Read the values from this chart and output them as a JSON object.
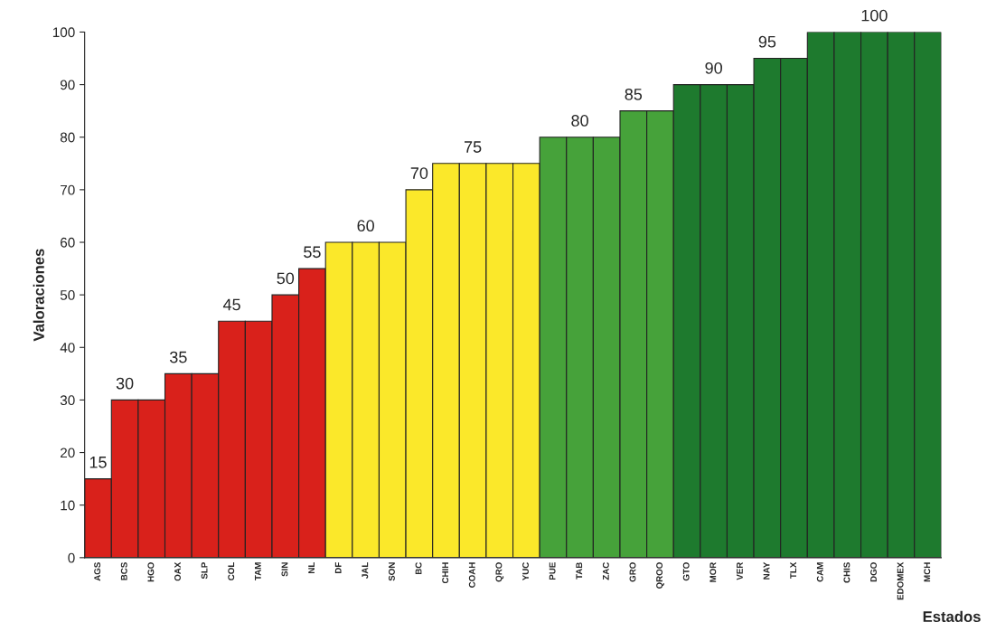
{
  "chart_data": {
    "type": "bar",
    "xlabel": "Estados",
    "ylabel": "Valoraciones",
    "categories": [
      "AGS",
      "BCS",
      "HGO",
      "OAX",
      "SLP",
      "COL",
      "TAM",
      "SIN",
      "NL",
      "DF",
      "JAL",
      "SON",
      "BC",
      "CHIH",
      "COAH",
      "QRO",
      "YUC",
      "PUE",
      "TAB",
      "ZAC",
      "GRO",
      "QROO",
      "GTO",
      "MOR",
      "VER",
      "NAY",
      "TLX",
      "CAM",
      "CHIS",
      "DGO",
      "EDOMEX",
      "MCH"
    ],
    "values": [
      15,
      30,
      30,
      35,
      35,
      45,
      45,
      50,
      55,
      60,
      60,
      60,
      70,
      75,
      75,
      75,
      75,
      80,
      80,
      80,
      85,
      85,
      90,
      90,
      90,
      95,
      95,
      100,
      100,
      100,
      100,
      100
    ],
    "value_labels": [
      "15",
      "30",
      null,
      "35",
      null,
      "45",
      null,
      "50",
      "55",
      null,
      "60",
      null,
      "70",
      null,
      "75",
      null,
      null,
      null,
      "80",
      null,
      "85",
      null,
      null,
      "90",
      null,
      "95",
      null,
      null,
      null,
      "100",
      null,
      null
    ],
    "colors": [
      "#d9211b",
      "#d9211b",
      "#d9211b",
      "#d9211b",
      "#d9211b",
      "#d9211b",
      "#d9211b",
      "#d9211b",
      "#d9211b",
      "#fbe82a",
      "#fbe82a",
      "#fbe82a",
      "#fbe82a",
      "#fbe82a",
      "#fbe82a",
      "#fbe82a",
      "#fbe82a",
      "#46a23a",
      "#46a23a",
      "#46a23a",
      "#46a23a",
      "#46a23a",
      "#1e7a2e",
      "#1e7a2e",
      "#1e7a2e",
      "#1e7a2e",
      "#1e7a2e",
      "#1e7a2e",
      "#1e7a2e",
      "#1e7a2e",
      "#1e7a2e",
      "#1e7a2e"
    ],
    "ylim": [
      0,
      100
    ],
    "yticks": [
      0,
      10,
      20,
      30,
      40,
      50,
      60,
      70,
      80,
      90,
      100
    ],
    "grid": false,
    "legend": false
  }
}
